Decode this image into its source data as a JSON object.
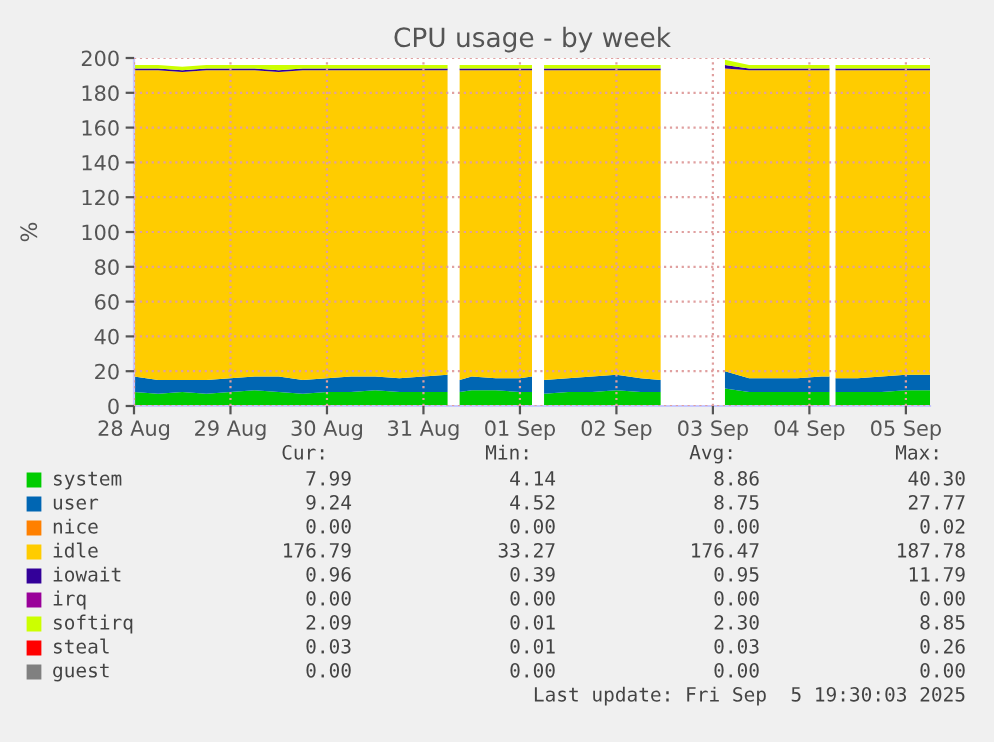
{
  "chart_data": {
    "type": "area",
    "stacked": true,
    "title": "CPU usage - by week",
    "ylabel": "%",
    "x": [
      "2025-08-28T00:00",
      "2025-08-28T06:00",
      "2025-08-28T12:00",
      "2025-08-28T18:00",
      "2025-08-29T00:00",
      "2025-08-29T06:00",
      "2025-08-29T12:00",
      "2025-08-29T18:00",
      "2025-08-30T00:00",
      "2025-08-30T06:00",
      "2025-08-30T12:00",
      "2025-08-30T18:00",
      "2025-08-31T00:00",
      "2025-08-31T06:00",
      "2025-08-31T07:30",
      "2025-08-31T09:00",
      "2025-08-31T12:00",
      "2025-08-31T18:00",
      "2025-09-01T00:00",
      "2025-09-01T03:00",
      "2025-09-01T04:30",
      "2025-09-01T06:00",
      "2025-09-01T12:00",
      "2025-09-01T18:00",
      "2025-09-02T00:00",
      "2025-09-02T06:00",
      "2025-09-02T11:00",
      "2025-09-02T18:00",
      "2025-09-03T03:00",
      "2025-09-03T09:00",
      "2025-09-03T15:00",
      "2025-09-03T21:00",
      "2025-09-04T03:00",
      "2025-09-04T05:00",
      "2025-09-04T05:45",
      "2025-09-04T06:30",
      "2025-09-04T12:00",
      "2025-09-04T18:00",
      "2025-09-05T00:00",
      "2025-09-05T06:00"
    ],
    "series": [
      {
        "name": "system",
        "color": "#00cc00",
        "values": [
          8,
          7,
          8,
          7,
          8,
          9,
          8,
          7,
          8,
          8,
          9,
          8,
          8,
          8,
          null,
          8,
          9,
          9,
          8,
          8,
          null,
          7,
          8,
          8,
          9,
          8,
          8,
          null,
          10,
          8,
          8,
          8,
          8,
          8,
          null,
          8,
          8,
          8,
          9,
          9
        ]
      },
      {
        "name": "user",
        "color": "#0066b3",
        "values": [
          9,
          8,
          7,
          8,
          8,
          8,
          9,
          8,
          8,
          9,
          8,
          8,
          9,
          10,
          null,
          7,
          8,
          7,
          8,
          9,
          null,
          8,
          8,
          9,
          9,
          8,
          7,
          null,
          10,
          8,
          8,
          8,
          9,
          9,
          null,
          8,
          8,
          9,
          9,
          9
        ]
      },
      {
        "name": "nice",
        "color": "#ff8000",
        "values": [
          null,
          null,
          null,
          null,
          null,
          null,
          null,
          null,
          null,
          null,
          null,
          null,
          null,
          null,
          null,
          null,
          null,
          null,
          null,
          null,
          null,
          null,
          null,
          null,
          null,
          null,
          null,
          null,
          null,
          null,
          null,
          null,
          null,
          null,
          null,
          null,
          null,
          null,
          null,
          null
        ]
      },
      {
        "name": "idle",
        "color": "#ffcc00",
        "values": [
          176,
          178,
          177,
          178,
          177,
          176,
          175,
          178,
          177,
          176,
          176,
          177,
          176,
          175,
          null,
          178,
          176,
          177,
          177,
          176,
          null,
          178,
          177,
          176,
          175,
          177,
          178,
          null,
          174,
          177,
          177,
          177,
          176,
          176,
          null,
          177,
          177,
          176,
          175,
          175
        ]
      },
      {
        "name": "iowait",
        "color": "#330099",
        "values": [
          1,
          1,
          1,
          1,
          1,
          1,
          1,
          1,
          1,
          1,
          1,
          1,
          1,
          1,
          null,
          1,
          1,
          1,
          1,
          1,
          null,
          1,
          1,
          1,
          1,
          1,
          1,
          null,
          2,
          1,
          1,
          1,
          1,
          1,
          null,
          1,
          1,
          1,
          1,
          1
        ]
      },
      {
        "name": "irq",
        "color": "#990099",
        "values": [
          null,
          null,
          null,
          null,
          null,
          null,
          null,
          null,
          null,
          null,
          null,
          null,
          null,
          null,
          null,
          null,
          null,
          null,
          null,
          null,
          null,
          null,
          null,
          null,
          null,
          null,
          null,
          null,
          null,
          null,
          null,
          null,
          null,
          null,
          null,
          null,
          null,
          null,
          null,
          null
        ]
      },
      {
        "name": "softirq",
        "color": "#ccff00",
        "values": [
          2,
          2,
          2,
          2,
          2,
          2,
          3,
          2,
          2,
          2,
          2,
          2,
          2,
          2,
          null,
          2,
          2,
          2,
          2,
          2,
          null,
          2,
          2,
          2,
          2,
          2,
          2,
          null,
          3,
          2,
          2,
          2,
          2,
          2,
          null,
          2,
          2,
          2,
          2,
          2
        ]
      },
      {
        "name": "steal",
        "color": "#ff0000",
        "values": [
          null,
          null,
          null,
          null,
          null,
          null,
          null,
          null,
          null,
          null,
          null,
          null,
          null,
          null,
          null,
          null,
          null,
          null,
          null,
          null,
          null,
          null,
          null,
          null,
          null,
          null,
          null,
          null,
          null,
          null,
          null,
          null,
          null,
          null,
          null,
          null,
          null,
          null,
          null,
          null
        ]
      },
      {
        "name": "guest",
        "color": "#808080",
        "values": [
          null,
          null,
          null,
          null,
          null,
          null,
          null,
          null,
          null,
          null,
          null,
          null,
          null,
          null,
          null,
          null,
          null,
          null,
          null,
          null,
          null,
          null,
          null,
          null,
          null,
          null,
          null,
          null,
          null,
          null,
          null,
          null,
          null,
          null,
          null,
          null,
          null,
          null,
          null,
          null
        ]
      }
    ],
    "xlim": [
      "2025-08-28T00:00",
      "2025-09-05T06:00"
    ],
    "xticks": [
      {
        "value": "2025-08-28",
        "label": "28 Aug"
      },
      {
        "value": "2025-08-29",
        "label": "29 Aug"
      },
      {
        "value": "2025-08-30",
        "label": "30 Aug"
      },
      {
        "value": "2025-08-31",
        "label": "31 Aug"
      },
      {
        "value": "2025-09-01",
        "label": "01 Sep"
      },
      {
        "value": "2025-09-02",
        "label": "02 Sep"
      },
      {
        "value": "2025-09-03",
        "label": "03 Sep"
      },
      {
        "value": "2025-09-04",
        "label": "04 Sep"
      },
      {
        "value": "2025-09-05",
        "label": "05 Sep"
      }
    ],
    "ylim": [
      0,
      200
    ],
    "yticks": [
      0,
      20,
      40,
      60,
      80,
      100,
      120,
      140,
      160,
      180,
      200
    ],
    "grid": true,
    "legend": "bottom",
    "annotations": [
      "Cur:",
      "Min:",
      "Avg:",
      "Max:",
      "7.99",
      "4.14",
      "8.86",
      "40.30",
      "9.24",
      "4.52",
      "8.75",
      "27.77",
      "0.00",
      "0.00",
      "0.00",
      "0.02",
      "176.79",
      "33.27",
      "176.47",
      "187.78",
      "0.96",
      "0.39",
      "0.95",
      "11.79",
      "0.00",
      "0.00",
      "0.00",
      "0.00",
      "2.09",
      "0.01",
      "2.30",
      "8.85",
      "0.03",
      "0.01",
      "0.03",
      "0.26",
      "0.00",
      "0.00",
      "0.00",
      "0.00",
      "Last update: Fri Sep  5 19:30:03 2025"
    ]
  }
}
